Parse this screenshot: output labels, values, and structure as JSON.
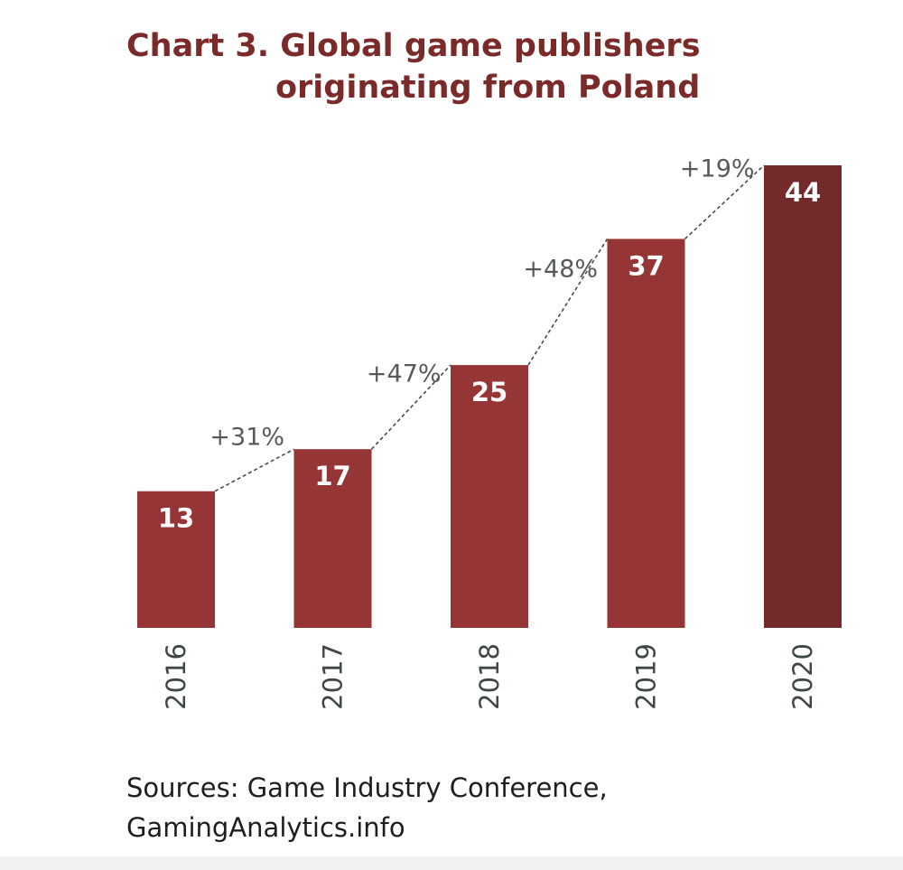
{
  "title": {
    "line1": "Chart 3. Global game publishers",
    "line2": "originating from Poland"
  },
  "source": {
    "line1": "Sources: Game Industry Conference,",
    "line2": "GamingAnalytics.info"
  },
  "colors": {
    "bar": "#963535",
    "bar_highlight": "#742a2a",
    "title": "#7b2a2a",
    "growth_label": "#555b5b",
    "axis_label": "#3f4646",
    "connector": "#4a4a4a"
  },
  "chart_data": {
    "type": "bar",
    "title": "Chart 3. Global game publishers originating from Poland",
    "xlabel": "",
    "ylabel": "",
    "categories": [
      "2016",
      "2017",
      "2018",
      "2019",
      "2020"
    ],
    "values": [
      13,
      17,
      25,
      37,
      44
    ],
    "growth_labels": [
      "+31%",
      "+47%",
      "+48%",
      "+19%"
    ],
    "highlight_index": 4,
    "ylim": [
      0,
      44
    ],
    "grid": false,
    "legend": "none"
  }
}
